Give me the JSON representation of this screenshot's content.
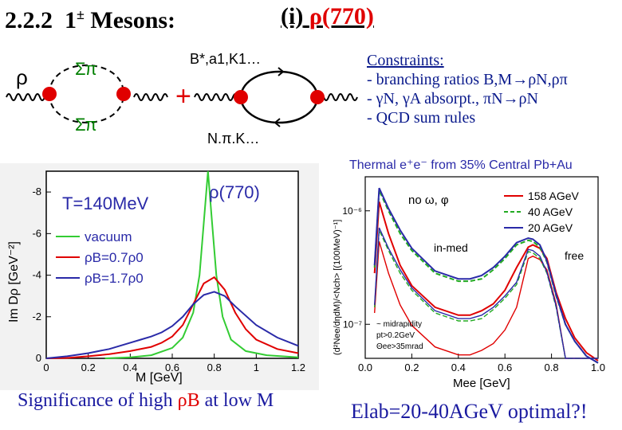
{
  "header": {
    "section": "2.2.2",
    "title_base": "1",
    "title_sup": "±",
    "title_rest": "Mesons:",
    "subtitle_prefix": "(i)",
    "subtitle_particle": "ρ(770)"
  },
  "diagram": {
    "rho_symbol": "ρ",
    "sigma_top": "Σπ",
    "sigma_bottom": "Σπ",
    "plus": "+",
    "loop_top_label": "B*,a1,K1…",
    "loop_bottom_label": "N,π,K…"
  },
  "constraints": {
    "heading": "Constraints:",
    "items": [
      "- branching ratios B,M→ρN,ρπ",
      "- γN, γA absorpt., πN→ρN",
      "- QCD sum rules"
    ]
  },
  "captions": {
    "left_pre": "Significance of high ",
    "left_rho": "ρB",
    "left_post": " at low M",
    "right": "Elab=20-40AGeV  optimal?!"
  },
  "colors": {
    "red": "#e00000",
    "green": "#33cc33",
    "blue": "#2a2aa8",
    "text_blue": "#1a1aa0"
  },
  "chart_data": [
    {
      "type": "line",
      "title": "ρ(770)",
      "annotation": "T=140MeV",
      "xlabel": "M [GeV]",
      "ylabel": "Im Dρ  [GeV⁻²]",
      "xlim": [
        0,
        1.2
      ],
      "ylim": [
        0,
        -9
      ],
      "xticks": [
        "0",
        "0.2",
        "0.4",
        "0.6",
        "0.8",
        "1",
        "1.2"
      ],
      "xtick_values": [
        0,
        0.2,
        0.4,
        0.6,
        0.8,
        1.0,
        1.2
      ],
      "yticks": [
        "0",
        "-2",
        "-4",
        "-6",
        "-8"
      ],
      "ytick_values": [
        0,
        -2,
        -4,
        -6,
        -8
      ],
      "legend": [
        "vacuum",
        "ρB=0.7ρ0",
        "ρB=1.7ρ0"
      ],
      "series": [
        {
          "name": "vacuum",
          "color": "#33cc33",
          "x": [
            0.28,
            0.4,
            0.5,
            0.6,
            0.65,
            0.7,
            0.73,
            0.75,
            0.77,
            0.79,
            0.81,
            0.84,
            0.88,
            0.95,
            1.05,
            1.2
          ],
          "y": [
            0,
            -0.05,
            -0.15,
            -0.5,
            -1.0,
            -2.2,
            -4.0,
            -6.5,
            -9.0,
            -6.5,
            -4.0,
            -2.0,
            -0.9,
            -0.35,
            -0.15,
            -0.05
          ]
        },
        {
          "name": "ρB=0.7ρ0",
          "color": "#e00000",
          "x": [
            0,
            0.1,
            0.2,
            0.3,
            0.4,
            0.5,
            0.55,
            0.6,
            0.65,
            0.7,
            0.75,
            0.8,
            0.85,
            0.9,
            0.95,
            1.0,
            1.1,
            1.2
          ],
          "y": [
            0,
            -0.02,
            -0.1,
            -0.2,
            -0.35,
            -0.55,
            -0.75,
            -1.05,
            -1.6,
            -2.6,
            -3.6,
            -3.9,
            -3.3,
            -2.2,
            -1.4,
            -0.9,
            -0.45,
            -0.25
          ]
        },
        {
          "name": "ρB=1.7ρ0",
          "color": "#2a2aa8",
          "x": [
            0,
            0.1,
            0.2,
            0.3,
            0.4,
            0.45,
            0.5,
            0.55,
            0.6,
            0.65,
            0.7,
            0.75,
            0.8,
            0.85,
            0.9,
            1.0,
            1.1,
            1.2
          ],
          "y": [
            0,
            -0.1,
            -0.25,
            -0.45,
            -0.75,
            -0.9,
            -1.05,
            -1.25,
            -1.55,
            -2.0,
            -2.6,
            -3.05,
            -3.2,
            -3.0,
            -2.5,
            -1.6,
            -1.0,
            -0.6
          ]
        }
      ]
    },
    {
      "type": "line",
      "title": "Thermal e⁺e⁻ from 35% Central Pb+Au",
      "xlabel": "Mee [GeV]",
      "ylabel": "(d²Nee/dηdM)/<Nch> [(100MeV)⁻¹]",
      "xlim": [
        0,
        1.0
      ],
      "ylim_log": [
        -7.3,
        -5.7
      ],
      "xticks": [
        "0.0",
        "0.2",
        "0.4",
        "0.6",
        "0.8",
        "1.0"
      ],
      "xtick_values": [
        0,
        0.2,
        0.4,
        0.6,
        0.8,
        1.0
      ],
      "yticks": [
        "10⁻⁶",
        "10⁻⁷"
      ],
      "ytick_log_values": [
        -6,
        -7
      ],
      "annotations": [
        "no  ω, φ",
        "in-med",
        "free",
        "~ midrapidity",
        "pt>0.2GeV",
        "Θee>35mrad"
      ],
      "legend": [
        "158 AGeV",
        "40 AGeV",
        "20 AGeV"
      ],
      "series": [
        {
          "name": "158 AGeV",
          "color": "#e00000",
          "style": "solid",
          "x": [
            0.04,
            0.06,
            0.1,
            0.15,
            0.2,
            0.3,
            0.4,
            0.45,
            0.5,
            0.55,
            0.6,
            0.65,
            0.7,
            0.72,
            0.75,
            0.78,
            0.82,
            0.86,
            0.9,
            0.95,
            1.0
          ],
          "y": [
            -6.55,
            -5.92,
            -6.2,
            -6.48,
            -6.66,
            -6.85,
            -6.92,
            -6.92,
            -6.88,
            -6.82,
            -6.7,
            -6.5,
            -6.32,
            -6.3,
            -6.33,
            -6.42,
            -6.72,
            -6.95,
            -7.12,
            -7.25,
            -7.32
          ]
        },
        {
          "name": "40 AGeV",
          "color": "#22aa22",
          "style": "dashed",
          "x": [
            0.04,
            0.06,
            0.1,
            0.15,
            0.2,
            0.3,
            0.4,
            0.45,
            0.5,
            0.55,
            0.6,
            0.65,
            0.7,
            0.72,
            0.75,
            0.78,
            0.82,
            0.86,
            0.9,
            0.95,
            1.0
          ],
          "y": [
            -6.5,
            -5.82,
            -6.0,
            -6.2,
            -6.35,
            -6.55,
            -6.62,
            -6.62,
            -6.6,
            -6.52,
            -6.42,
            -6.3,
            -6.26,
            -6.27,
            -6.32,
            -6.45,
            -6.75,
            -7.0,
            -7.15,
            -7.28,
            -7.34
          ]
        },
        {
          "name": "20 AGeV",
          "color": "#2a2aa8",
          "style": "solid",
          "x": [
            0.04,
            0.06,
            0.1,
            0.15,
            0.2,
            0.3,
            0.4,
            0.45,
            0.5,
            0.55,
            0.6,
            0.65,
            0.7,
            0.72,
            0.75,
            0.78,
            0.82,
            0.86,
            0.9,
            0.95,
            1.0
          ],
          "y": [
            -6.48,
            -5.8,
            -5.98,
            -6.17,
            -6.33,
            -6.53,
            -6.6,
            -6.6,
            -6.57,
            -6.5,
            -6.4,
            -6.28,
            -6.24,
            -6.25,
            -6.3,
            -6.44,
            -6.74,
            -7.0,
            -7.15,
            -7.28,
            -7.34
          ]
        }
      ]
    }
  ]
}
